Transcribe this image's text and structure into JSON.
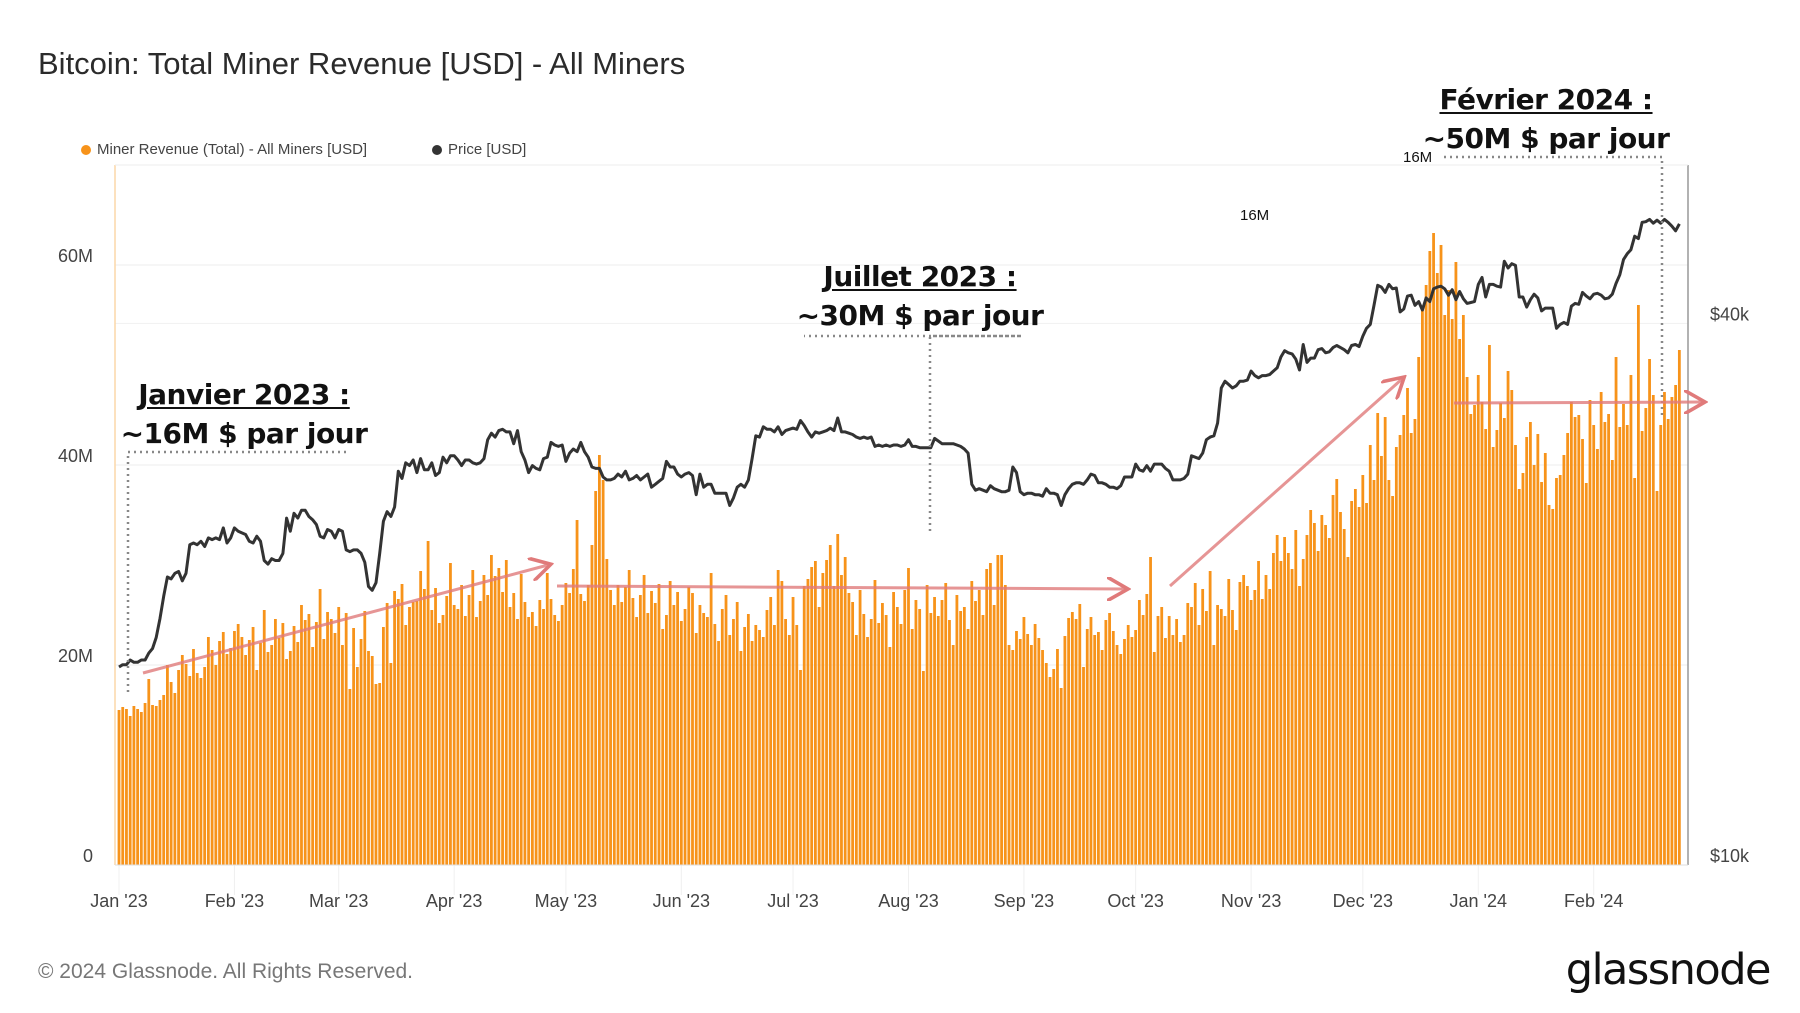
{
  "title": "Bitcoin: Total Miner Revenue [USD] - All Miners",
  "footer": "© 2024 Glassnode. All Rights Reserved.",
  "logo": "glassnode",
  "annotations": [
    {
      "title": "Janvier 2023 :",
      "subtitle": "~16M $ par jour"
    },
    {
      "title": "Juillet 2023 :",
      "subtitle": "~30M $ par jour"
    },
    {
      "title": "Février 2024 :",
      "subtitle": "~50M $ par jour"
    }
  ],
  "marker_labels": [
    "16M",
    "16M"
  ],
  "chart_data": {
    "type": "bar+line",
    "title": "Bitcoin: Total Miner Revenue [USD] - All Miners",
    "legend_position": "top-left",
    "grid": true,
    "x_start": "2023-01-01",
    "x_end": "2024-02-24",
    "x_interval": "1d",
    "x_ticks": [
      {
        "date": "2023-01-01",
        "label": "Jan '23"
      },
      {
        "date": "2023-02-01",
        "label": "Feb '23"
      },
      {
        "date": "2023-03-01",
        "label": "Mar '23"
      },
      {
        "date": "2023-04-01",
        "label": "Apr '23"
      },
      {
        "date": "2023-05-01",
        "label": "May '23"
      },
      {
        "date": "2023-06-01",
        "label": "Jun '23"
      },
      {
        "date": "2023-07-01",
        "label": "Jul '23"
      },
      {
        "date": "2023-08-01",
        "label": "Aug '23"
      },
      {
        "date": "2023-09-01",
        "label": "Sep '23"
      },
      {
        "date": "2023-10-01",
        "label": "Oct '23"
      },
      {
        "date": "2023-11-01",
        "label": "Nov '23"
      },
      {
        "date": "2023-12-01",
        "label": "Dec '23"
      },
      {
        "date": "2024-01-01",
        "label": "Jan '24"
      },
      {
        "date": "2024-02-01",
        "label": "Feb '24"
      }
    ],
    "left_axis": {
      "scale": "linear",
      "range_millions": [
        0,
        70
      ],
      "ticks": [
        {
          "value": 0,
          "label": "0"
        },
        {
          "value": 20,
          "label": "20M"
        },
        {
          "value": 40,
          "label": "40M"
        },
        {
          "value": 60,
          "label": "60M"
        }
      ]
    },
    "right_axis": {
      "scale": "log",
      "range_usd": [
        10000,
        60000
      ],
      "ticks": [
        {
          "value": 10000,
          "label": "$10k"
        },
        {
          "value": 40000,
          "label": "$40k"
        }
      ]
    },
    "series": [
      {
        "name": "Miner Revenue (Total) - All Miners [USD]",
        "type": "bar",
        "color": "#f7931a",
        "axis": "left",
        "revenue_usd_millions": [
          15.5,
          15.8,
          15.6,
          14.9,
          15.9,
          15.6,
          15.3,
          16.2,
          18.6,
          16.0,
          15.9,
          16.5,
          17.0,
          20.0,
          18.3,
          17.2,
          19.5,
          21.0,
          20.1,
          18.9,
          21.6,
          19.2,
          18.7,
          19.8,
          22.8,
          21.5,
          20.0,
          22.4,
          23.3,
          21.1,
          21.7,
          23.4,
          24.1,
          22.8,
          21.0,
          22.5,
          23.8,
          19.5,
          22.2,
          25.5,
          21.3,
          22.0,
          24.6,
          22.7,
          24.2,
          20.6,
          21.4,
          23.9,
          22.3,
          26.0,
          24.5,
          25.1,
          21.8,
          24.3,
          27.6,
          22.6,
          25.3,
          24.6,
          23.2,
          25.8,
          22.0,
          25.2,
          17.6,
          23.7,
          19.8,
          22.6,
          25.4,
          21.4,
          20.9,
          18.1,
          18.2,
          23.8,
          26.2,
          20.2,
          27.4,
          26.6,
          28.1,
          24.0,
          25.8,
          26.3,
          26.4,
          29.4,
          27.6,
          32.4,
          25.5,
          27.7,
          24.2,
          25.0,
          26.9,
          30.2,
          26.0,
          25.6,
          28.0,
          24.9,
          27.0,
          29.5,
          24.8,
          26.4,
          29.0,
          27.0,
          31.0,
          28.9,
          29.7,
          27.3,
          30.5,
          25.8,
          27.2,
          24.6,
          29.1,
          26.3,
          24.8,
          25.3,
          23.9,
          26.5,
          25.6,
          29.2,
          26.6,
          25.0,
          24.4,
          26.0,
          28.2,
          27.2,
          29.6,
          34.5,
          27.1,
          26.4,
          28.0,
          32.0,
          37.4,
          41.0,
          38.5,
          30.6,
          27.5,
          26.0,
          28.0,
          26.3,
          27.8,
          29.5,
          26.7,
          24.8,
          27.0,
          29.0,
          25.2,
          27.4,
          26.2,
          28.1,
          23.6,
          25.0,
          28.4,
          26.0,
          27.3,
          24.4,
          25.6,
          27.8,
          27.2,
          23.2,
          26.0,
          25.2,
          24.8,
          29.2,
          24.1,
          22.4,
          25.6,
          27.0,
          23.0,
          24.6,
          26.3,
          21.4,
          23.8,
          25.1,
          22.4,
          24.0,
          23.5,
          22.8,
          25.5,
          26.8,
          24.0,
          29.5,
          28.4,
          24.6,
          23.0,
          26.8,
          24.0,
          19.5,
          27.9,
          28.6,
          29.8,
          30.4,
          25.8,
          29.2,
          30.5,
          32.0,
          27.9,
          33.1,
          29.0,
          30.8,
          27.2,
          26.3,
          23.0,
          27.5,
          25.1,
          22.8,
          24.6,
          28.5,
          24.2,
          26.2,
          25.0,
          21.8,
          27.3,
          25.8,
          24.1,
          27.5,
          29.7,
          23.6,
          26.5,
          25.6,
          19.4,
          28.0,
          25.2,
          26.8,
          24.9,
          26.5,
          28.2,
          24.5,
          22.0,
          27.0,
          25.4,
          25.8,
          23.6,
          28.4,
          26.4,
          27.5,
          25.0,
          29.6,
          30.2,
          26.0,
          31.0,
          31.0,
          28.0,
          22.0,
          21.5,
          23.4,
          22.6,
          24.8,
          23.1,
          22.0,
          24.1,
          22.7,
          21.5,
          20.2,
          18.8,
          19.6,
          21.6,
          17.7,
          22.9,
          24.7,
          25.3,
          24.6,
          26.1,
          19.8,
          23.6,
          24.8,
          23.0,
          23.3,
          21.5,
          24.5,
          25.2,
          23.4,
          22.0,
          21.1,
          22.6,
          24.0,
          22.8,
          23.5,
          26.5,
          25.0,
          27.1,
          30.8,
          21.3,
          24.9,
          25.8,
          22.7,
          24.9,
          23.0,
          24.6,
          22.3,
          23.0,
          26.2,
          25.8,
          28.2,
          24.0,
          27.6,
          25.4,
          29.4,
          22.0,
          26.0,
          25.6,
          24.9,
          28.6,
          25.5,
          23.5,
          28.3,
          29.0,
          27.9,
          26.5,
          27.5,
          30.4,
          26.6,
          29.0,
          27.6,
          31.2,
          33.0,
          30.4,
          32.8,
          31.2,
          29.6,
          33.5,
          27.9,
          30.6,
          33.0,
          35.5,
          34.2,
          31.4,
          35.0,
          34.0,
          32.7,
          37.0,
          38.6,
          35.3,
          33.6,
          30.8,
          36.4,
          37.6,
          35.8,
          39.0,
          36.2,
          42.0,
          38.5,
          45.2,
          40.9,
          44.8,
          38.5,
          36.9,
          41.8,
          43.0,
          45.0,
          47.7,
          43.2,
          44.6,
          50.8,
          55.8,
          58.0,
          61.4,
          63.2,
          59.2,
          62.0,
          55.0,
          57.5,
          54.6,
          60.3,
          52.6,
          55.0,
          48.8,
          45.1,
          46.0,
          49.0,
          46.3,
          43.6,
          52.0,
          41.8,
          43.5,
          46.2,
          44.7,
          49.4,
          47.5,
          42.0,
          37.6,
          39.2,
          42.8,
          44.3,
          40.0,
          43.1,
          38.3,
          41.2,
          36.0,
          35.6,
          38.7,
          39.0,
          41.0,
          43.2,
          46.3,
          44.8,
          45.0,
          42.6,
          38.2,
          46.5,
          44.0,
          41.6,
          47.3,
          44.3,
          45.1,
          40.5,
          50.8,
          43.8,
          46.1,
          44.0,
          49.0,
          38.7,
          56.0,
          43.4,
          45.7,
          50.6,
          47.0,
          37.4,
          44.0,
          47.3,
          44.6,
          46.8,
          48.0,
          51.5
        ]
      },
      {
        "name": "Price [USD]",
        "type": "line",
        "color": "#333333",
        "axis": "right",
        "price_usd_thousands": [
          16.6,
          16.7,
          16.7,
          16.9,
          16.8,
          16.8,
          16.9,
          16.9,
          17.2,
          17.4,
          17.9,
          18.8,
          19.9,
          20.9,
          20.8,
          21.1,
          21.2,
          20.7,
          21.1,
          22.7,
          22.8,
          22.7,
          22.9,
          22.6,
          23.1,
          23.0,
          23.1,
          23.0,
          23.7,
          22.8,
          23.1,
          23.7,
          23.5,
          23.4,
          23.3,
          22.9,
          22.8,
          23.2,
          22.9,
          21.8,
          21.6,
          21.9,
          21.8,
          21.8,
          22.2,
          24.3,
          23.5,
          24.6,
          24.3,
          24.8,
          24.8,
          24.4,
          24.2,
          23.9,
          23.2,
          23.1,
          23.6,
          23.5,
          23.1,
          23.6,
          23.5,
          22.4,
          22.3,
          22.4,
          22.4,
          22.2,
          21.7,
          20.4,
          20.2,
          20.6,
          22.2,
          24.1,
          24.7,
          24.4,
          25.0,
          27.4,
          26.9,
          28.0,
          27.8,
          28.2,
          27.3,
          28.3,
          27.5,
          27.5,
          28.0,
          27.1,
          27.3,
          28.4,
          28.0,
          28.5,
          28.5,
          28.2,
          27.8,
          28.2,
          28.2,
          28.0,
          27.9,
          28.0,
          28.3,
          29.7,
          30.2,
          29.9,
          30.4,
          30.5,
          30.3,
          30.3,
          29.4,
          30.4,
          28.8,
          28.2,
          27.3,
          27.8,
          27.6,
          27.5,
          28.3,
          28.4,
          29.5,
          29.3,
          29.2,
          29.3,
          28.1,
          28.7,
          29.0,
          28.8,
          29.5,
          28.8,
          28.4,
          27.7,
          27.6,
          27.6,
          27.0,
          26.8,
          26.8,
          26.9,
          27.2,
          27.0,
          27.4,
          26.8,
          26.9,
          27.1,
          26.8,
          27.0,
          27.2,
          26.3,
          26.5,
          26.7,
          26.9,
          28.1,
          27.7,
          27.7,
          27.2,
          27.0,
          27.2,
          27.3,
          27.1,
          25.8,
          27.2,
          26.3,
          26.5,
          26.5,
          25.9,
          25.9,
          25.9,
          25.9,
          25.1,
          25.6,
          26.3,
          26.5,
          26.3,
          26.8,
          28.3,
          30.0,
          29.9,
          30.7,
          30.5,
          30.5,
          30.3,
          30.7,
          30.1,
          30.4,
          30.5,
          30.6,
          30.5,
          31.2,
          30.8,
          30.3,
          29.9,
          30.3,
          30.2,
          30.3,
          30.4,
          30.6,
          30.4,
          31.4,
          30.3,
          30.3,
          30.2,
          30.1,
          29.9,
          29.8,
          29.9,
          29.8,
          29.9,
          29.2,
          29.3,
          29.2,
          29.3,
          29.2,
          29.3,
          29.3,
          29.2,
          29.3,
          29.7,
          29.2,
          29.2,
          29.1,
          29.1,
          29.1,
          29.1,
          29.8,
          29.6,
          29.4,
          29.4,
          29.4,
          29.4,
          29.3,
          29.2,
          29.0,
          28.7,
          26.5,
          26.1,
          26.2,
          26.1,
          26.0,
          26.4,
          26.2,
          26.1,
          26.0,
          26.0,
          26.1,
          27.7,
          27.3,
          26.0,
          25.8,
          25.9,
          25.9,
          25.8,
          25.8,
          25.7,
          26.2,
          25.9,
          25.9,
          25.8,
          25.1,
          25.8,
          26.2,
          26.5,
          26.6,
          26.6,
          26.5,
          26.8,
          27.2,
          27.1,
          26.6,
          26.6,
          26.5,
          26.3,
          26.3,
          26.2,
          26.4,
          27.0,
          27.0,
          27.0,
          27.9,
          27.5,
          27.4,
          27.8,
          27.4,
          27.9,
          27.9,
          27.9,
          27.6,
          27.4,
          26.8,
          26.8,
          26.8,
          26.9,
          27.2,
          28.5,
          28.4,
          28.3,
          28.7,
          29.7,
          29.9,
          30.0,
          31.0,
          33.9,
          34.5,
          34.2,
          33.9,
          34.1,
          34.5,
          34.5,
          34.6,
          35.4,
          35.0,
          34.8,
          35.0,
          35.0,
          35.1,
          35.4,
          35.7,
          36.7,
          37.3,
          37.1,
          37.0,
          36.5,
          35.5,
          37.9,
          36.2,
          36.6,
          36.6,
          37.4,
          37.5,
          37.1,
          37.2,
          37.6,
          37.8,
          37.6,
          37.4,
          37.1,
          37.8,
          37.9,
          37.7,
          38.7,
          39.5,
          39.9,
          41.9,
          44.1,
          43.9,
          43.3,
          44.2,
          43.7,
          43.8,
          41.2,
          41.5,
          42.9,
          43.0,
          41.9,
          42.3,
          41.4,
          42.7,
          42.3,
          43.7,
          43.9,
          44.0,
          43.7,
          43.0,
          43.6,
          42.5,
          43.4,
          42.6,
          42.1,
          42.2,
          42.3,
          44.2,
          45.0,
          42.8,
          44.2,
          44.2,
          44.0,
          43.9,
          46.9,
          46.1,
          46.6,
          46.4,
          42.8,
          42.8,
          41.7,
          42.5,
          43.1,
          42.7,
          41.3,
          41.6,
          41.6,
          41.6,
          39.5,
          39.9,
          40.1,
          39.9,
          41.8,
          42.1,
          42.0,
          43.3,
          42.9,
          42.6,
          43.1,
          43.2,
          43.0,
          42.6,
          42.7,
          43.1,
          44.3,
          45.3,
          47.1,
          47.8,
          48.3,
          50.0,
          49.7,
          51.8,
          51.9,
          52.2,
          51.7,
          52.1,
          51.7,
          52.2,
          51.8,
          51.3,
          50.7,
          51.6
        ]
      }
    ],
    "trend_arrows_color": "#e07a7a"
  }
}
